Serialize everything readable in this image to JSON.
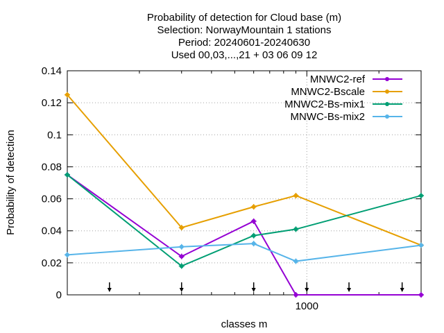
{
  "chart_data": {
    "type": "line",
    "title_lines": [
      "Probability of detection  for Cloud base (m)",
      "Selection: NorwayMountain      1 stations",
      "Period: 20240601-20240630",
      "Used 00,03,...,21 + 03 06 09 12"
    ],
    "xlabel": "classes m",
    "ylabel": "Probability of detection",
    "x_scale": "log",
    "xlim": [
      100,
      3000
    ],
    "ylim": [
      0,
      0.14
    ],
    "y_ticks": [
      {
        "value": 0,
        "label": "0"
      },
      {
        "value": 0.02,
        "label": "0.02"
      },
      {
        "value": 0.04,
        "label": "0.04"
      },
      {
        "value": 0.06,
        "label": "0.06"
      },
      {
        "value": 0.08,
        "label": "0.08"
      },
      {
        "value": 0.1,
        "label": "0.1"
      },
      {
        "value": 0.12,
        "label": "0.12"
      },
      {
        "value": 0.14,
        "label": "0.14"
      }
    ],
    "x_ticks": [
      {
        "value": 1000,
        "label": "1000"
      }
    ],
    "x_minor_ticks": [
      200,
      300,
      400,
      500,
      600,
      700,
      800,
      900,
      2000,
      3000
    ],
    "grid": true,
    "legend_position": "top-right",
    "class_arrows": [
      50,
      150,
      300,
      600,
      1000,
      1500,
      2500
    ],
    "x": [
      100,
      300,
      600,
      900,
      3000
    ],
    "series": [
      {
        "name": "MNWC2-ref",
        "color": "#9400d3",
        "values": [
          0.075,
          0.024,
          0.046,
          0.0,
          0.0
        ]
      },
      {
        "name": "MNWC2-Bscale",
        "color": "#e69f00",
        "values": [
          0.125,
          0.042,
          0.055,
          0.062,
          0.031
        ]
      },
      {
        "name": "MNWC2-Bs-mix1",
        "color": "#009e73",
        "values": [
          0.075,
          0.018,
          0.037,
          0.041,
          0.062
        ]
      },
      {
        "name": "MNWC-Bs-mix2",
        "color": "#56b4e9",
        "values": [
          0.025,
          0.03,
          0.032,
          0.021,
          0.031
        ]
      }
    ]
  }
}
